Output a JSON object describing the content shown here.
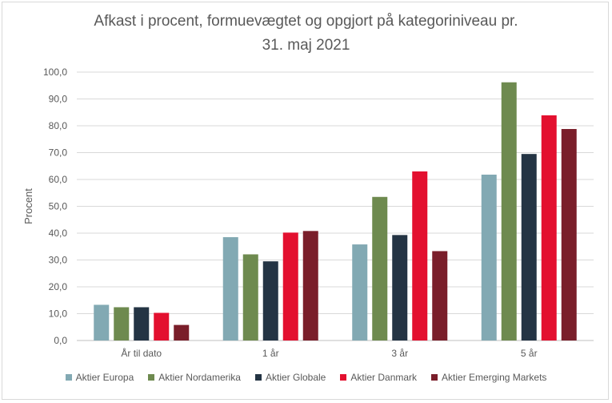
{
  "chart_data": {
    "type": "bar",
    "title_line1": "Afkast i procent, formuevægtet og opgjort på kategoriniveau pr.",
    "title_line2": "31. maj 2021",
    "xlabel": "",
    "ylabel": "Procent",
    "ylim": [
      0,
      100
    ],
    "y_ticks": [
      "0,0",
      "10,0",
      "20,0",
      "30,0",
      "40,0",
      "50,0",
      "60,0",
      "70,0",
      "80,0",
      "90,0",
      "100,0"
    ],
    "grid": true,
    "legend_position": "bottom",
    "categories": [
      "År til dato",
      "1 år",
      "3 år",
      "5 år"
    ],
    "series": [
      {
        "name": "Aktier Europa",
        "color": "#82a9b3",
        "values": [
          13.3,
          38.5,
          35.8,
          61.8
        ]
      },
      {
        "name": "Aktier Nordamerika",
        "color": "#6e8a4f",
        "values": [
          12.4,
          32.1,
          53.5,
          96.2
        ]
      },
      {
        "name": "Aktier Globale",
        "color": "#243444",
        "values": [
          12.4,
          29.5,
          39.3,
          69.5
        ]
      },
      {
        "name": "Aktier Danmark",
        "color": "#e3102f",
        "values": [
          10.3,
          40.2,
          63.0,
          83.9
        ]
      },
      {
        "name": "Aktier Emerging Markets",
        "color": "#7a1e2a",
        "values": [
          5.8,
          40.8,
          33.3,
          78.8
        ]
      }
    ]
  }
}
